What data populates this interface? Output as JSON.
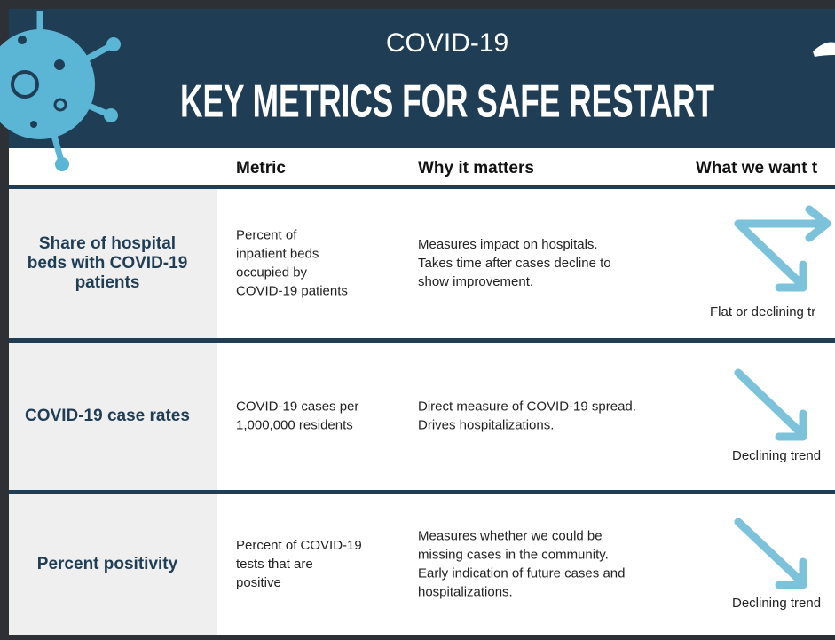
{
  "header": {
    "subtitle": "COVID-19",
    "title": "KEY METRICS FOR SAFE RESTART"
  },
  "table": {
    "columns": [
      "Metric",
      "Why it matters",
      "What we want t"
    ],
    "rows": [
      {
        "name": [
          "Share of hospital",
          "beds with COVID-19",
          "patients"
        ],
        "metric": [
          "Percent of",
          "inpatient beds",
          "occupied by",
          "COVID-19 patients"
        ],
        "why": [
          "Measures impact on hospitals.",
          "Takes time after cases decline to",
          "show improvement."
        ],
        "want": "Flat or declining tr"
      },
      {
        "name": [
          "COVID-19 case rates"
        ],
        "metric": [
          "COVID-19 cases per",
          "1,000,000 residents"
        ],
        "why": [
          "Direct measure of COVID-19 spread.",
          "Drives hospitalizations."
        ],
        "want": "Declining trend"
      },
      {
        "name": [
          "Percent positivity"
        ],
        "metric": [
          "Percent of COVID-19",
          "tests that are",
          "positive"
        ],
        "why": [
          "Measures whether we could be",
          "missing cases in the community.",
          "Early indication of future cases and",
          "hospitalizations."
        ],
        "want": "Declining trend"
      }
    ]
  }
}
